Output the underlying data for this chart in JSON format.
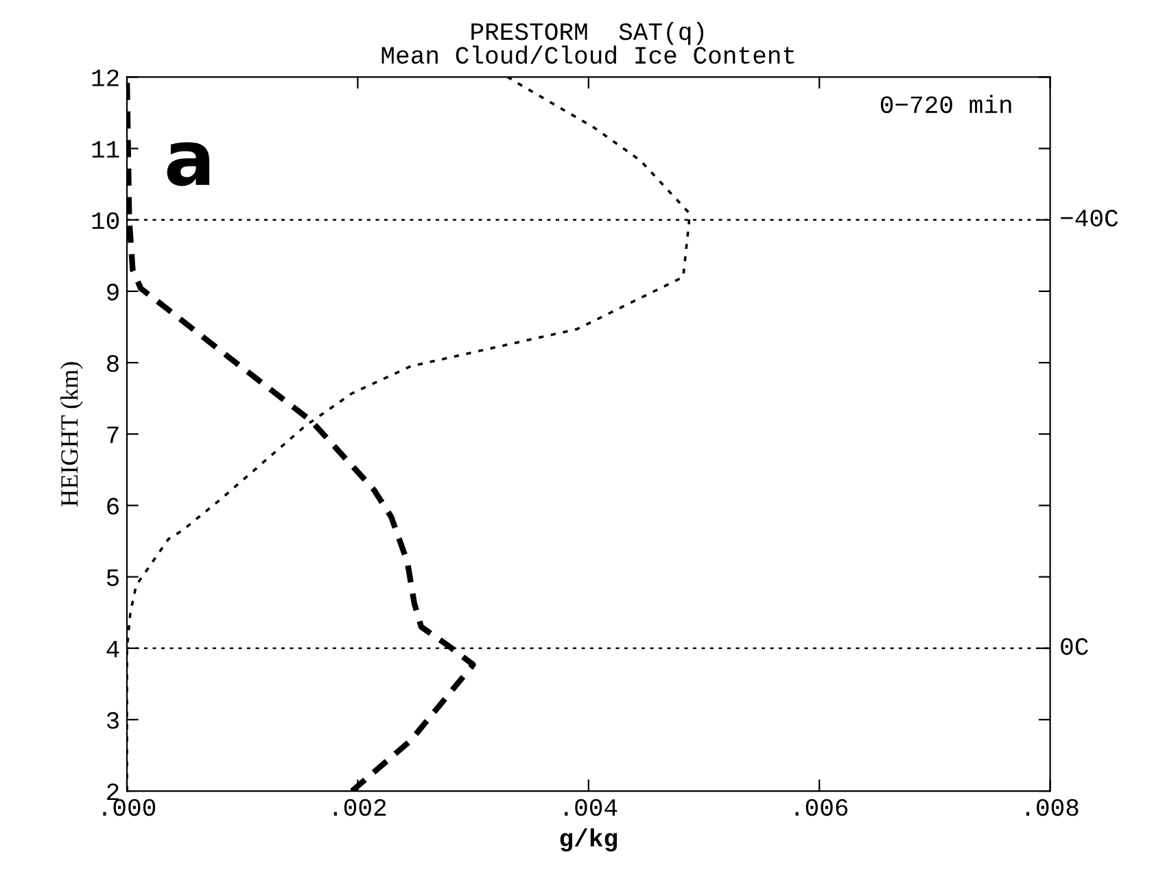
{
  "chart_data": {
    "type": "line",
    "title": "PRESTORM  SAT(q)",
    "subtitle": "Mean Cloud/Cloud Ice Content",
    "xlabel": "g/kg",
    "ylabel": "HEIGHT (km)",
    "series": [
      {
        "color": "#000000",
        "line_style": "dashed",
        "x": [
          0.00195,
          0.00246,
          0.003,
          0.00279,
          0.00255,
          0.00249,
          0.00243,
          0.00229,
          0.00214,
          0.0016,
          0.00088,
          0.00032,
          0.00012,
          5e-05,
          2e-05,
          0
        ],
        "values": [
          2,
          2.71,
          3.77,
          4.03,
          4.3,
          4.63,
          5.21,
          5.84,
          6.22,
          7.18,
          8.08,
          8.79,
          9.04,
          9.3,
          10,
          12
        ]
      },
      {
        "color": "#000000",
        "line_style": "dotted",
        "x": [
          0,
          0,
          3e-05,
          8e-05,
          0.00036,
          0.00048,
          0.0008,
          0.00155,
          0.00195,
          0.00246,
          0.0039,
          0.00482,
          0.00487,
          0.00487,
          0.00445,
          0.00405,
          0.00338,
          0.0033
        ],
        "values": [
          2,
          4,
          4.5,
          4.88,
          5.53,
          5.65,
          6.07,
          7.12,
          7.57,
          7.95,
          8.47,
          9.2,
          9.95,
          10.1,
          10.83,
          11.29,
          11.92,
          12
        ]
      }
    ],
    "xlim": [
      0,
      0.008
    ],
    "xticks": [
      {
        "value": 0,
        "label": ".000"
      },
      {
        "value": 0.002,
        "label": ".002"
      },
      {
        "value": 0.004,
        "label": ".004"
      },
      {
        "value": 0.006,
        "label": ".006"
      },
      {
        "value": 0.008,
        "label": ".008"
      }
    ],
    "ylim": [
      2,
      12
    ],
    "yticks": [
      2,
      3,
      4,
      5,
      6,
      7,
      8,
      9,
      10,
      11,
      12
    ],
    "ref_lines": [
      {
        "axis": "y",
        "value": 10,
        "label": "−40C",
        "line_style": "dotted"
      },
      {
        "axis": "y",
        "value": 4,
        "label": "0C",
        "line_style": "dotted"
      }
    ],
    "annotations": [
      "a",
      "0−720 min"
    ],
    "grid": false,
    "legend": false,
    "marker": "none"
  }
}
